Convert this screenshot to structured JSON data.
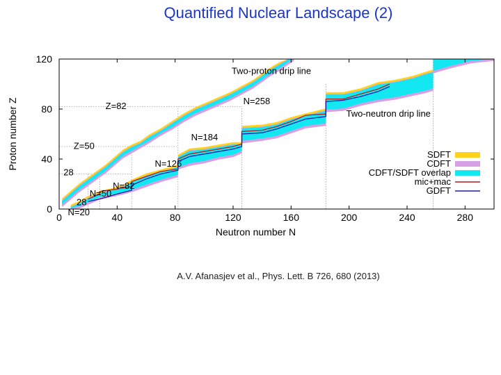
{
  "slide": {
    "title": "Quantified Nuclear Landscape (2)",
    "citation": "A.V. Afanasjev et al., Phys. Lett. B 726, 680 (2013)"
  },
  "chart_data": {
    "type": "area",
    "title": "",
    "xlabel": "Neutron number  N",
    "ylabel": "Proton number  Z",
    "xlim": [
      0,
      300
    ],
    "ylim": [
      0,
      120
    ],
    "xticks": [
      0,
      40,
      80,
      120,
      160,
      200,
      240,
      280
    ],
    "yticks": [
      0,
      40,
      80,
      120
    ],
    "grid": false,
    "legend_position": "bottom-right",
    "legend": [
      {
        "label": "SDFT",
        "color": "#ffd21a",
        "style": "band"
      },
      {
        "label": "CDFT",
        "color": "#d7a0e4",
        "style": "band"
      },
      {
        "label": "CDFT/SDFT overlap",
        "color": "#13e8f2",
        "style": "band"
      },
      {
        "label": "mic+mac",
        "color": "#b41a1a",
        "style": "line"
      },
      {
        "label": "GDFT",
        "color": "#1a1aa0",
        "style": "line"
      }
    ],
    "annotations": [
      {
        "text": "Two-proton drip line",
        "x": 119,
        "y": 108
      },
      {
        "text": "Two-neutron drip line",
        "x": 198,
        "y": 74
      },
      {
        "text": "Z=82",
        "x": 32,
        "y": 80
      },
      {
        "text": "Z=50",
        "x": 10,
        "y": 48
      },
      {
        "text": "28",
        "x": 3,
        "y": 27
      },
      {
        "text": "28",
        "x": 12,
        "y": 3
      },
      {
        "text": "N=20",
        "x": 6,
        "y": -5
      },
      {
        "text": "N=50",
        "x": 21,
        "y": 10
      },
      {
        "text": "N=82",
        "x": 37,
        "y": 16
      },
      {
        "text": "N=126",
        "x": 66,
        "y": 34
      },
      {
        "text": "N=184",
        "x": 91,
        "y": 55
      },
      {
        "text": "N=258",
        "x": 127,
        "y": 84
      }
    ],
    "magic_guides": [
      {
        "orientation": "horizontal",
        "z": 82,
        "n_from": 0,
        "n_to": 126
      },
      {
        "orientation": "horizontal",
        "z": 50,
        "n_from": 0,
        "n_to": 82
      },
      {
        "orientation": "horizontal",
        "z": 28,
        "n_from": 0,
        "n_to": 50
      },
      {
        "orientation": "vertical",
        "n": 20,
        "z_from": 0,
        "z_to": 28
      },
      {
        "orientation": "vertical",
        "n": 28,
        "z_from": 0,
        "z_to": 28
      },
      {
        "orientation": "vertical",
        "n": 50,
        "z_from": 0,
        "z_to": 50
      },
      {
        "orientation": "vertical",
        "n": 82,
        "z_from": 0,
        "z_to": 82
      },
      {
        "orientation": "vertical",
        "n": 126,
        "z_from": 0,
        "z_to": 82
      },
      {
        "orientation": "vertical",
        "n": 184,
        "z_from": 0,
        "z_to": 100
      },
      {
        "orientation": "vertical",
        "n": 258,
        "z_from": 0,
        "z_to": 120
      }
    ],
    "series": [
      {
        "name": "Two-proton drip line (CDFT/SDFT band)",
        "x": [
          2,
          8,
          14,
          20,
          26,
          32,
          38,
          44,
          50,
          56,
          62,
          70,
          78,
          86,
          94,
          102,
          110,
          118,
          126,
          134,
          140,
          146,
          152,
          158,
          162
        ],
        "low": [
          3,
          9,
          15,
          20,
          25,
          30,
          36,
          42,
          46,
          50,
          54,
          60,
          65,
          71,
          76,
          80,
          84,
          88,
          93,
          98,
          103,
          108,
          112,
          117,
          120
        ],
        "high": [
          7,
          13,
          19,
          24,
          29,
          34,
          40,
          46,
          50,
          53,
          58,
          63,
          69,
          75,
          80,
          84,
          88,
          92,
          97,
          102,
          107,
          112,
          116,
          120,
          121
        ]
      },
      {
        "name": "Two-neutron drip line (SDFT band)",
        "x": [
          8,
          14,
          20,
          28,
          36,
          44,
          50,
          60,
          70,
          82,
          82,
          90,
          100,
          110,
          120,
          126,
          126,
          140,
          150,
          160,
          170,
          184,
          184,
          196,
          208,
          220,
          232,
          244,
          252,
          258,
          258,
          270,
          284,
          300
        ],
        "low": [
          0,
          2,
          5,
          9,
          11,
          13,
          15,
          19,
          23,
          27,
          33,
          36,
          38,
          41,
          43,
          46,
          54,
          56,
          58,
          62,
          66,
          68,
          79,
          80,
          84,
          87,
          89,
          92,
          94,
          96,
          110,
          114,
          118,
          120
        ],
        "high": [
          2,
          5,
          9,
          13,
          15,
          18,
          22,
          27,
          30,
          34,
          42,
          47,
          48,
          50,
          52,
          52,
          65,
          66,
          68,
          72,
          75,
          79,
          92,
          92,
          95,
          100,
          102,
          105,
          108,
          110,
          120,
          121,
          121,
          121
        ]
      },
      {
        "name": "mic+mac",
        "x": [
          20,
          28,
          28,
          40,
          50,
          50,
          60,
          70,
          82,
          82,
          90,
          100,
          110,
          120,
          126,
          126,
          140,
          150,
          160,
          170,
          184,
          184,
          196,
          208,
          220,
          228
        ],
        "y": [
          8,
          12,
          14,
          16,
          18,
          22,
          26,
          30,
          32,
          40,
          44,
          46,
          48,
          50,
          52,
          62,
          63,
          66,
          70,
          75,
          76,
          88,
          88,
          92,
          96,
          100
        ]
      },
      {
        "name": "GDFT",
        "x": [
          20,
          28,
          40,
          50,
          50,
          60,
          70,
          82,
          82,
          90,
          100,
          110,
          120,
          126,
          126,
          140,
          150,
          160,
          170,
          184,
          184,
          196,
          208,
          220,
          228
        ],
        "y": [
          6,
          8,
          12,
          15,
          19,
          24,
          28,
          31,
          38,
          42,
          44,
          46,
          48,
          50,
          60,
          61,
          64,
          68,
          72,
          74,
          86,
          87,
          90,
          94,
          98
        ]
      }
    ]
  }
}
